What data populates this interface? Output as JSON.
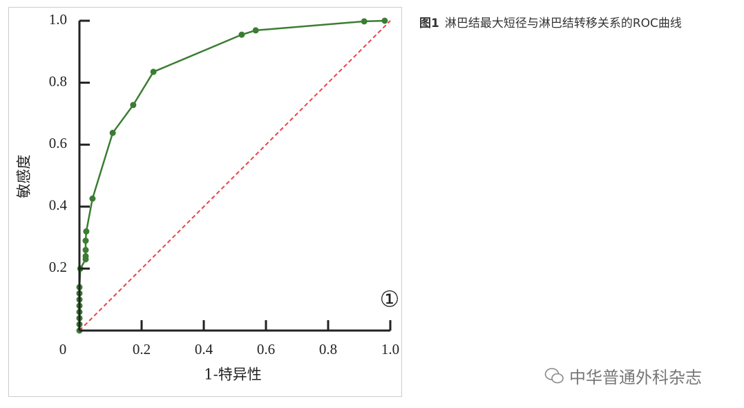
{
  "chart_data": {
    "type": "line",
    "xlabel": "1-特异性",
    "ylabel": "敏感度",
    "annotation": "①",
    "xlim": [
      0,
      1
    ],
    "ylim": [
      0,
      1
    ],
    "xticks": [
      0,
      0.2,
      0.4,
      0.6,
      0.8,
      {
        "value": 1,
        "label": "1.0"
      }
    ],
    "yticks": [
      0.2,
      0.4,
      0.6,
      0.8,
      {
        "value": 1,
        "label": "1.0"
      }
    ],
    "series": [
      {
        "color": "#3a7d32",
        "x": [
          0,
          0,
          0,
          0,
          0,
          0,
          0,
          0,
          0.003,
          0.02,
          0.02,
          0.02,
          0.02,
          0.022,
          0.042,
          0.107,
          0.173,
          0.238,
          0.522,
          0.567,
          0.916,
          0.982
        ],
        "values": [
          0,
          0.02,
          0.04,
          0.06,
          0.08,
          0.1,
          0.12,
          0.14,
          0.2,
          0.23,
          0.24,
          0.26,
          0.29,
          0.32,
          0.426,
          0.638,
          0.728,
          0.835,
          0.955,
          0.969,
          0.998,
          1
        ]
      },
      {
        "color": "#e8424a",
        "dashed": true,
        "x": [
          0,
          1
        ],
        "values": [
          0,
          1
        ]
      }
    ]
  },
  "caption": {
    "label": "图1",
    "text": "淋巴结最大短径与淋巴结转移关系的ROC曲线"
  },
  "watermark": "中华普通外科杂志"
}
